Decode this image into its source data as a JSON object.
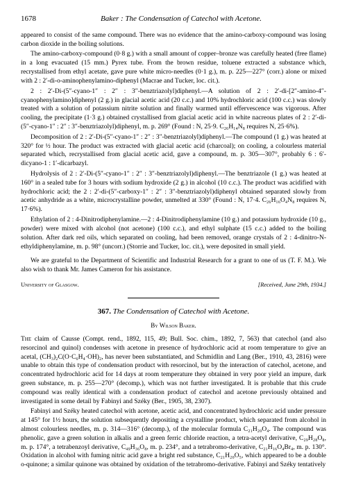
{
  "header": {
    "page_number": "1678",
    "running_title": "Baker : The Condensation of Catechol with Acetone."
  },
  "body1": {
    "p1": "appeared to consist of the same compound. There was no evidence that the amino-carboxy-compound was losing carbon dioxide in the boiling solutions.",
    "p2": "The amino-carboxy-compound (0·8 g.) with a small amount of copper–bronze was carefully heated (free flame) in a long evacuated (15 mm.) Pyrex tube. From the brown residue, toluene extracted a substance which, recrystallised from ethyl acetate, gave pure white micro-needles (0·1 g.), m. p. 225—227° (corr.) alone or mixed with 2 : 2′-di-o-aminophenylamino-diphenyl (Macrae and Tucker, loc. cit.).",
    "p3": "2 : 2′-Di-(5″-cyano-1″ : 2″ : 3″-benztriazolyl)diphenyl.—A solution of 2 : 2′-di-[2″-amino-4″-cyanophenylamino]diphenyl (2 g.) in glacial acetic acid (20 c.c.) and 10% hydrochloric acid (100 c.c.) was slowly treated with a solution of potassium nitrite solution and finally warmed until effervescence was vigorous. After cooling, the precipitate (1·3 g.) obtained crystallised from glacial acetic acid in white nacreous plates of 2 : 2′-di-(5″-cyano-1″ : 2″ : 3″-benztriazolyl)diphenyl, m. p. 269° (Found : N, 25·9. C₂₆H₁₄N₈ requires N, 25·6%).",
    "p4": "Decomposition of 2 : 2′-Di-(5″-cyano-1″ : 2″ : 3″-benztriazolyl)diphenyl.—The compound (1 g.) was heated at 320° for ½ hour. The product was extracted with glacial acetic acid (charcoal); on cooling, a colourless material separated which, recrystallised from glacial acetic acid, gave a compound, m. p. 305—307°, probably 6 : 6′-dicyano-1 : 1′-dicarbazyl.",
    "p5": "Hydrolysis of 2 : 2′-Di-(5″-cyano-1″ : 2″ : 3″-benztriazolyl)diphenyl.—The benztriazole (1 g.) was heated at 160° in a sealed tube for 3 hours with sodium hydroxide (2 g.) in alcohol (10 c.c.). The product was acidified with hydrochloric acid; the 2 : 2′-di-(5″-carboxy-1″ : 2″ : 3″-benztriazolyl)diphenyl obtained separated slowly from acetic anhydride as a white, microcrystalline powder, unmelted at 330° (Found : N, 17·4. C₂₆H₁₆O₄N₈ requires N, 17·6%).",
    "p6": "Ethylation of 2 : 4-Dinitrodiphenylamine.—2 : 4-Dinitrodiphenylamine (10 g.) and potassium hydroxide (10 g., powder) were mixed with alcohol (not acetone) (100 c.c.), and ethyl sulphate (15 c.c.) added to the boiling solution. After dark red oils, which separated on cooling, had been removed, orange crystals of 2 : 4-dinitro-N-ethyldiphenylamine, m. p. 98° (uncorr.) (Storrie and Tucker, loc. cit.), were deposited in small yield.",
    "ack": "We are grateful to the Department of Scientific and Industrial Research for a grant to one of us (T. F. M.). We also wish to thank Mr. James Cameron for his assistance.",
    "affiliation": "University of Glasgow.",
    "received": "[Received, June 29th, 1934.]"
  },
  "article2": {
    "number": "367.",
    "title": "The Condensation of Catechol with Acetone.",
    "author": "By Wilson Baker.",
    "p1a": "The",
    "p1": " claim of Causse (Compt. rend., 1892, 115, 49; Bull. Soc. chim., 1892, 7, 563) that catechol (and also resorcinol and quinol) condenses with acetone in presence of hydrochloric acid at room temperature to give an acetal, (CH₃)₂C(O·C₆H₄·OH)₂, has never been substantiated, and Schmidlin and Lang (Ber., 1910, 43, 2816) were unable to obtain this type of condensation product with resorcinol, but by the interaction of catechol, acetone, and concentrated hydrochloric acid for 14 days at room temperature they obtained in very poor yield an impure, dark green substance, m. p. 255—270° (decomp.), which was not further investigated. It is probable that this crude compound was really identical with a condensation product of catechol and acetone previously obtained and investigated in some detail by Fabinyi and Széky (Ber., 1905, 38, 2307).",
    "p2": "Fabinyi and Széky heated catechol with acetone, acetic acid, and concentrated hydrochloric acid under pressure at 145° for 1½ hours, the solution subsequently depositing a crystalline product, which separated from alcohol in almost colourless needles, m. p. 314—316° (decomp.), of the molecular formula C₂₁H₂₀O₄. The compound was phenolic, gave a green solution in alkalis and a green ferric chloride reaction, a tetra-acetyl derivative, C₂₉H₂₈O₈, m. p. 174°, a tetrabenzoyl derivative, C₄₉H₃₆O₈, m. p. 234°, and a tetrabromo-derivative, C₂₁H₁₆O₄Br₄, m. p. 130°. Oxidation in alcohol with fuming nitric acid gave a bright red substance, C₂₁H₂₀O₅, which appeared to be a double o-quinone; a similar quinone was obtained by oxidation of the tetrabromo-derivative. Fabinyi and Széky tentatively"
  }
}
